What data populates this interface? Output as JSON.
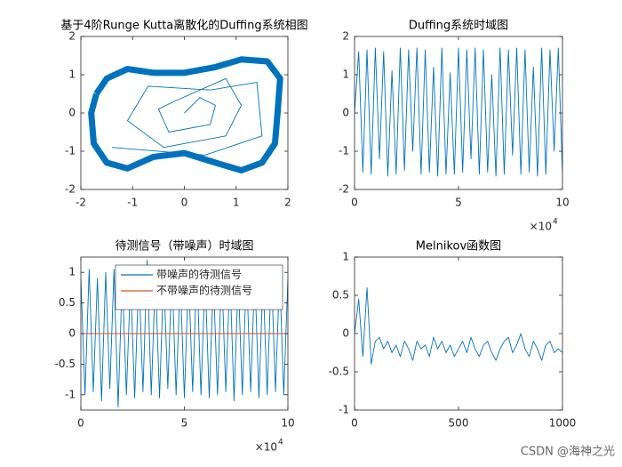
{
  "chart_data": [
    {
      "type": "line",
      "title": "基于4阶Runge Kutta离散化的Duffing系统相图",
      "xlim": [
        -2,
        2
      ],
      "ylim": [
        -2,
        2
      ],
      "xticks": [
        -2,
        -1,
        0,
        1,
        2
      ],
      "yticks": [
        -2,
        -1,
        0,
        1,
        2
      ],
      "series": [
        {
          "color": "#0072bd",
          "x": [
            -1.7,
            -1.5,
            -1.1,
            -0.6,
            0,
            0.6,
            1.1,
            1.6,
            1.85,
            1.8,
            1.75,
            1.5,
            1.1,
            0.6,
            0,
            -0.6,
            -1.1,
            -1.5,
            -1.75,
            -1.8,
            -1.7
          ],
          "y": [
            0.5,
            0.9,
            1.15,
            1.05,
            1.05,
            1.2,
            1.4,
            1.35,
            0.9,
            0,
            -0.8,
            -1.3,
            -1.5,
            -1.3,
            -1.05,
            -1.15,
            -1.45,
            -1.3,
            -0.8,
            0,
            0.5
          ]
        },
        {
          "color": "#0072bd",
          "x": [
            0,
            0.3,
            0.6,
            0.5,
            -0.3,
            -0.5,
            -0.2,
            0.8,
            1.1,
            0.8,
            -0.4,
            -1.1,
            -0.7,
            0.5,
            1.4,
            1.5,
            0.4,
            -1.4
          ],
          "y": [
            0,
            0.4,
            0.2,
            -0.3,
            -0.5,
            0.1,
            0.3,
            0.9,
            0.2,
            -0.6,
            -0.9,
            -0.2,
            0.7,
            0.6,
            0.8,
            -0.6,
            -1.1,
            -0.9
          ]
        }
      ]
    },
    {
      "type": "line",
      "title": "Duffing系统时域图",
      "x_multiplier": "×10",
      "x_exponent": "4",
      "xlim": [
        0,
        10
      ],
      "ylim": [
        -2,
        2
      ],
      "xticks": [
        0,
        5,
        10
      ],
      "yticks": [
        -2,
        -1,
        0,
        1,
        2
      ],
      "series": [
        {
          "color": "#0072bd",
          "x": [
            0,
            0.2,
            0.4,
            0.6,
            0.8,
            1,
            1.2,
            1.4,
            1.6,
            1.8,
            2,
            2.2,
            2.4,
            2.6,
            2.8,
            3,
            3.2,
            3.4,
            3.6,
            3.8,
            4,
            4.2,
            4.4,
            4.6,
            4.8,
            5,
            5.2,
            5.4,
            5.6,
            5.8,
            6,
            6.2,
            6.4,
            6.6,
            6.8,
            7,
            7.2,
            7.4,
            7.6,
            7.8,
            8,
            8.2,
            8.4,
            8.6,
            8.8,
            9,
            9.2,
            9.4,
            9.6,
            9.8,
            10
          ],
          "y": [
            0,
            1.6,
            -1.55,
            1.65,
            -1.6,
            1.7,
            -1.2,
            1.6,
            -1.65,
            1.1,
            -1.6,
            1.7,
            -1.5,
            1.65,
            -1.0,
            1.7,
            -1.6,
            1.65,
            -1.55,
            1.2,
            -1.65,
            1.7,
            -1.6,
            1.05,
            -1.6,
            1.7,
            -1.55,
            1.65,
            -1.2,
            1.7,
            -1.6,
            1.65,
            -1.55,
            1.0,
            -1.65,
            1.7,
            -1.6,
            1.65,
            -1.1,
            1.7,
            -1.6,
            1.65,
            -1.55,
            1.2,
            -1.65,
            1.7,
            -1.6,
            1.65,
            -1.0,
            1.7,
            -1.6
          ]
        }
      ]
    },
    {
      "type": "line",
      "title": "待测信号（带噪声）时域图",
      "x_multiplier": "×10",
      "x_exponent": "4",
      "xlim": [
        0,
        10
      ],
      "ylim": [
        -1.25,
        1.25
      ],
      "xticks": [
        0,
        5,
        10
      ],
      "yticks": [
        -1,
        -0.5,
        0,
        0.5,
        1
      ],
      "legend": "northeast",
      "series": [
        {
          "name": "带噪声的待测信号",
          "color": "#0072bd",
          "x": [
            0,
            0.2,
            0.4,
            0.6,
            0.8,
            1,
            1.2,
            1.4,
            1.6,
            1.8,
            2,
            2.2,
            2.4,
            2.6,
            2.8,
            3,
            3.2,
            3.4,
            3.6,
            3.8,
            4,
            4.2,
            4.4,
            4.6,
            4.8,
            5,
            5.2,
            5.4,
            5.6,
            5.8,
            6,
            6.2,
            6.4,
            6.6,
            6.8,
            7,
            7.2,
            7.4,
            7.6,
            7.8,
            8,
            8.2,
            8.4,
            8.6,
            8.8,
            9,
            9.2,
            9.4,
            9.6,
            9.8,
            10
          ],
          "y": [
            0.9,
            -1.0,
            1.05,
            -0.95,
            0.9,
            -1.1,
            1.0,
            -0.9,
            1.05,
            -1.2,
            0.95,
            -1.0,
            0.9,
            -1.05,
            1.0,
            -0.95,
            1.2,
            -1.0,
            0.95,
            -1.05,
            1.0,
            -0.9,
            1.05,
            -1.0,
            0.9,
            -1.05,
            1.0,
            -0.95,
            1.1,
            -1.0,
            0.95,
            -1.05,
            0.9,
            -1.0,
            1.05,
            -0.95,
            1.0,
            -1.1,
            0.9,
            -1.0,
            1.05,
            -0.95,
            1.0,
            -1.05,
            0.9,
            -1.0,
            1.05,
            -0.95,
            1.0,
            -1.0,
            0.9
          ]
        },
        {
          "name": "不带噪声的待测信号",
          "color": "#d95319",
          "x": [
            0,
            10
          ],
          "y": [
            0,
            0
          ]
        }
      ]
    },
    {
      "type": "line",
      "title": "Melnikov函数图",
      "xlim": [
        0,
        1000
      ],
      "ylim": [
        -1,
        1
      ],
      "xticks": [
        0,
        500,
        1000
      ],
      "yticks": [
        -1,
        -0.5,
        0,
        0.5,
        1
      ],
      "series": [
        {
          "color": "#0072bd",
          "x": [
            0,
            20,
            40,
            60,
            80,
            100,
            120,
            140,
            160,
            180,
            200,
            220,
            240,
            260,
            280,
            300,
            320,
            340,
            360,
            380,
            400,
            420,
            440,
            460,
            480,
            500,
            520,
            540,
            560,
            580,
            600,
            620,
            640,
            660,
            680,
            700,
            720,
            740,
            760,
            780,
            800,
            820,
            840,
            860,
            880,
            900,
            920,
            940,
            960,
            980,
            1000
          ],
          "y": [
            0.0,
            0.45,
            -0.3,
            0.6,
            -0.4,
            -0.1,
            -0.05,
            -0.2,
            -0.1,
            -0.25,
            -0.15,
            -0.3,
            -0.1,
            -0.2,
            -0.35,
            -0.1,
            -0.2,
            -0.15,
            -0.3,
            -0.05,
            -0.2,
            -0.1,
            -0.25,
            -0.15,
            -0.3,
            -0.2,
            -0.1,
            -0.25,
            -0.05,
            -0.2,
            -0.3,
            -0.15,
            -0.1,
            -0.25,
            -0.35,
            -0.2,
            -0.1,
            -0.05,
            -0.25,
            -0.15,
            0.0,
            -0.2,
            -0.3,
            -0.1,
            -0.2,
            -0.35,
            -0.15,
            -0.1,
            -0.25,
            -0.2,
            -0.25
          ]
        }
      ]
    }
  ],
  "watermark": "CSDN @海神之光"
}
